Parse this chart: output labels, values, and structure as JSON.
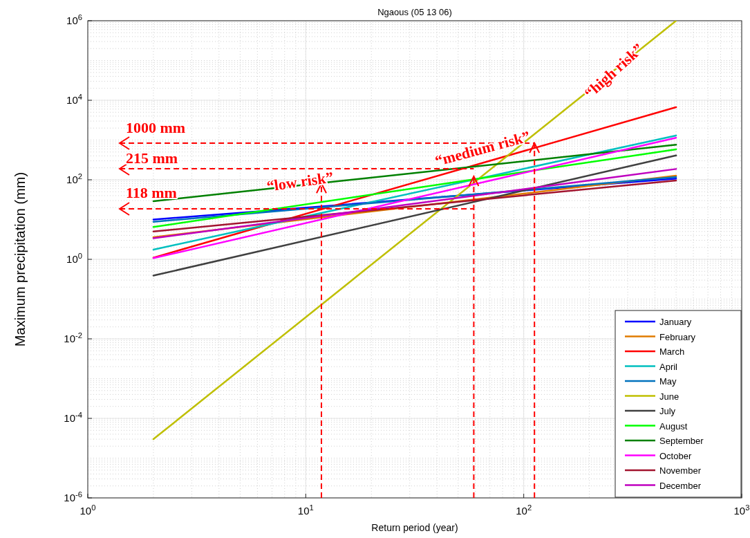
{
  "chart_data": {
    "type": "line",
    "title": "Ngaous (05 13 06)",
    "xlabel": "Return period (year)",
    "ylabel": "Maximum precipitation (mm)",
    "log": "xy",
    "grid": true,
    "legend": "bottom right",
    "xlim": [
      1,
      1000
    ],
    "xticks": [
      {
        "value": 1,
        "label": "10$^{0}$"
      },
      {
        "value": 10,
        "label": "10$^{1}$"
      },
      {
        "value": 100,
        "label": "10$^{2}$"
      },
      {
        "value": 1000,
        "label": "10$^{3}$"
      }
    ],
    "ylim": [
      1e-06,
      1000000
    ],
    "yticks": [
      {
        "value": 1e-06,
        "label": "10$^{-6}$"
      },
      {
        "value": 0.0001,
        "label": "10$^{-4}$"
      },
      {
        "value": 0.01,
        "label": "10$^{-2}$"
      },
      {
        "value": 1,
        "label": "10$^{0}$"
      },
      {
        "value": 100,
        "label": "10$^{2}$"
      },
      {
        "value": 10000,
        "label": "10$^{4}$"
      },
      {
        "value": 1000000,
        "label": "10$^{6}$"
      }
    ],
    "x": [
      2,
      500
    ],
    "series": [
      {
        "name": "January",
        "color": "#0000ff",
        "values": [
          10,
          107
        ]
      },
      {
        "name": "February",
        "color": "#e07b00",
        "values": [
          3.6,
          127
        ]
      },
      {
        "name": "March",
        "color": "#ff0000",
        "values": [
          1.1,
          6700
        ]
      },
      {
        "name": "April",
        "color": "#00bfbf",
        "values": [
          1.75,
          1300
        ]
      },
      {
        "name": "May",
        "color": "#0072bd",
        "values": [
          8.8,
          117
        ]
      },
      {
        "name": "June",
        "color": "#bfbf00",
        "values": [
          3e-05,
          1000000
        ]
      },
      {
        "name": "July",
        "color": "#404040",
        "values": [
          0.39,
          410
        ]
      },
      {
        "name": "August",
        "color": "#00ff00",
        "values": [
          6.5,
          585
        ]
      },
      {
        "name": "September",
        "color": "#008000",
        "values": [
          29,
          760
        ]
      },
      {
        "name": "October",
        "color": "#ff00ff",
        "values": [
          1.07,
          1140
        ]
      },
      {
        "name": "November",
        "color": "#a2142f",
        "values": [
          5,
          96
        ]
      },
      {
        "name": "December",
        "color": "#bf00bf",
        "values": [
          3.4,
          187
        ]
      }
    ],
    "annotations": [
      "1000 mm",
      "215 mm",
      "118 mm",
      "“low risk”",
      "“medium risk”",
      "“high risk”"
    ]
  }
}
